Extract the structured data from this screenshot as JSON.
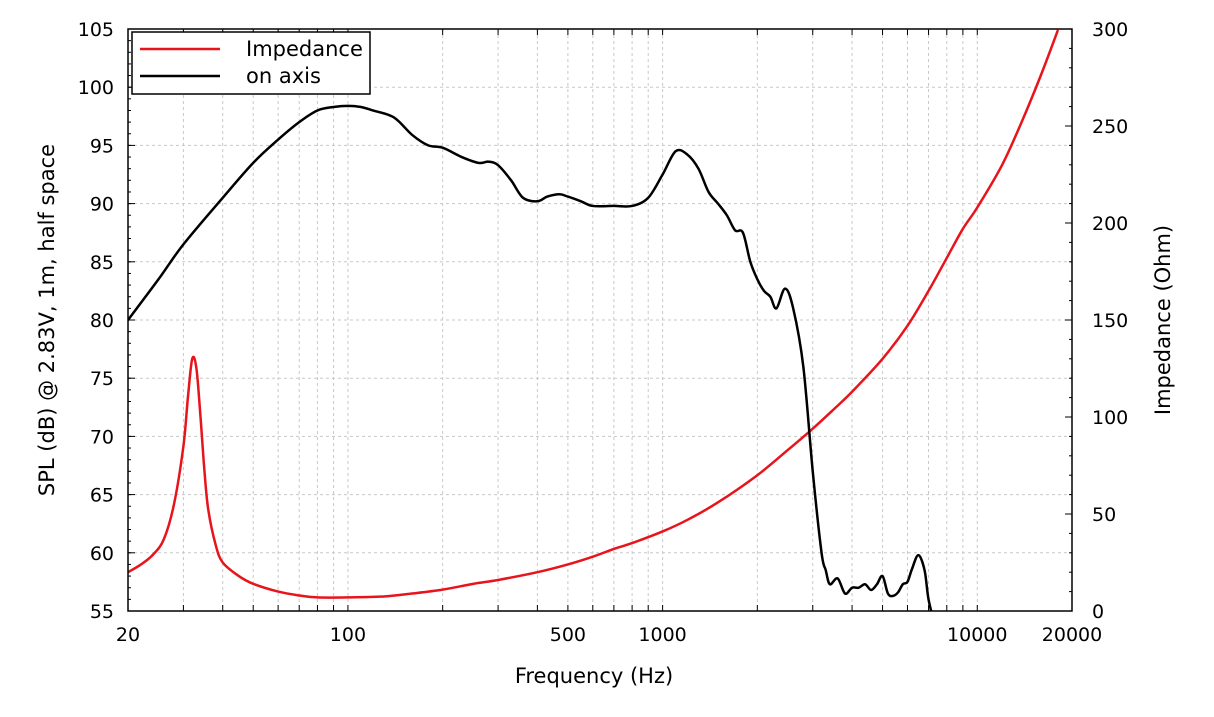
{
  "chart_data": {
    "type": "line",
    "title": "",
    "xlabel": "Frequency (Hz)",
    "ylabel_left": "SPL (dB) @ 2.83V, 1m, half space",
    "ylabel_right": "Impedance (Ohm)",
    "xscale": "log",
    "xlim": [
      20,
      20000
    ],
    "ylim_left": [
      55,
      105
    ],
    "ylim_right": [
      0,
      300
    ],
    "x_ticks": [
      20,
      100,
      500,
      1000,
      10000,
      20000
    ],
    "x_tick_labels": [
      "20",
      "100",
      "500",
      "1000",
      "10000",
      "20000"
    ],
    "y_left_ticks": [
      55,
      60,
      65,
      70,
      75,
      80,
      85,
      90,
      95,
      100,
      105
    ],
    "y_left_tick_labels": [
      "55",
      "60",
      "65",
      "70",
      "75",
      "80",
      "85",
      "90",
      "95",
      "100",
      "105"
    ],
    "y_right_ticks": [
      0,
      50,
      100,
      150,
      200,
      250,
      300
    ],
    "y_right_tick_labels": [
      "0",
      "50",
      "100",
      "150",
      "200",
      "250",
      "300"
    ],
    "grid": true,
    "legend_position": "top-left",
    "series": [
      {
        "name": "Impedance",
        "axis": "right",
        "color": "#e8141b",
        "x": [
          20,
          22,
          24,
          26,
          28,
          30,
          31,
          32,
          33,
          34,
          35,
          36,
          38,
          40,
          45,
          50,
          60,
          70,
          80,
          100,
          130,
          160,
          200,
          250,
          300,
          400,
          500,
          600,
          700,
          800,
          1000,
          1200,
          1500,
          2000,
          2500,
          3000,
          3500,
          4000,
          5000,
          6000,
          7000,
          8000,
          9000,
          10000,
          12000,
          14000,
          16000,
          18000
        ],
        "values": [
          20,
          24,
          29,
          37,
          55,
          85,
          110,
          130,
          125,
          100,
          72,
          52,
          34,
          25,
          18,
          14,
          10,
          8,
          7,
          7,
          7.5,
          9,
          11,
          14,
          16,
          20,
          24,
          28,
          32,
          35,
          41,
          47,
          56,
          70,
          83,
          94,
          104,
          113,
          130,
          147,
          165,
          182,
          197,
          208,
          230,
          254,
          277,
          299
        ]
      },
      {
        "name": "on axis",
        "axis": "left",
        "color": "#000000",
        "x": [
          20,
          25,
          30,
          40,
          50,
          60,
          70,
          80,
          90,
          100,
          110,
          120,
          140,
          160,
          180,
          200,
          230,
          260,
          280,
          300,
          330,
          360,
          400,
          430,
          470,
          500,
          550,
          600,
          700,
          800,
          900,
          1000,
          1100,
          1200,
          1300,
          1400,
          1500,
          1600,
          1700,
          1800,
          1900,
          2000,
          2100,
          2200,
          2300,
          2450,
          2600,
          2800,
          3000,
          3200,
          3300,
          3400,
          3600,
          3800,
          4000,
          4200,
          4400,
          4600,
          4800,
          5000,
          5200,
          5400,
          5600,
          5800,
          6000,
          6200,
          6500,
          6800,
          7000,
          7300
        ],
        "values": [
          80,
          83.5,
          86.5,
          90.5,
          93.5,
          95.5,
          97,
          98,
          98.3,
          98.4,
          98.3,
          98,
          97.4,
          95.9,
          95,
          94.8,
          94,
          93.5,
          93.6,
          93.3,
          92,
          90.5,
          90.2,
          90.6,
          90.8,
          90.6,
          90.2,
          89.8,
          89.8,
          89.8,
          90.5,
          92.5,
          94.5,
          94.2,
          93,
          91,
          90,
          89,
          87.7,
          87.5,
          85,
          83.5,
          82.5,
          82,
          81,
          82.7,
          81,
          76,
          67,
          60,
          58.5,
          57.3,
          57.8,
          56.5,
          57,
          57,
          57.3,
          56.8,
          57.3,
          58,
          56.5,
          56.3,
          56.6,
          57.3,
          57.5,
          58.6,
          59.8,
          58.5,
          56,
          54
        ]
      }
    ]
  }
}
